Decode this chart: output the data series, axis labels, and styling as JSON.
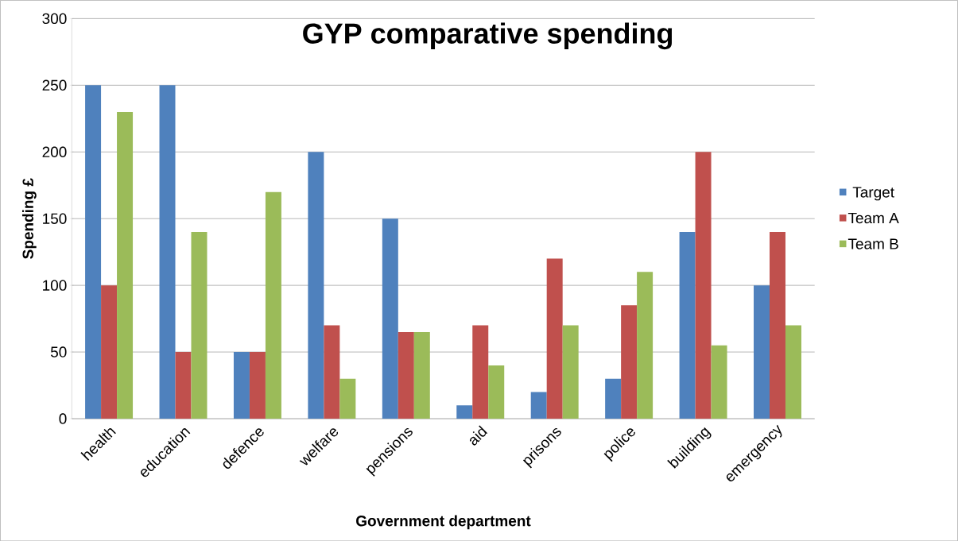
{
  "chart_data": {
    "type": "bar",
    "title": "GYP comparative spending",
    "xlabel": "Government department",
    "ylabel": "Spending £",
    "categories": [
      "health",
      "education",
      "defence",
      "welfare",
      "pensions",
      "aid",
      "prisons",
      "police",
      "building",
      "emergency"
    ],
    "series": [
      {
        "name": "Target",
        "color": "#4f81bd",
        "values": [
          250,
          250,
          50,
          200,
          150,
          10,
          20,
          30,
          140,
          100
        ]
      },
      {
        "name": "Team A",
        "color": "#c0504d",
        "values": [
          100,
          50,
          50,
          70,
          65,
          70,
          120,
          85,
          200,
          140
        ]
      },
      {
        "name": "Team B",
        "color": "#9bbb59",
        "values": [
          230,
          140,
          170,
          30,
          65,
          40,
          70,
          110,
          55,
          70
        ]
      }
    ],
    "ylim": [
      0,
      300
    ],
    "yticks": [
      0,
      50,
      100,
      150,
      200,
      250,
      300
    ],
    "grid": "y",
    "legend": "right"
  }
}
